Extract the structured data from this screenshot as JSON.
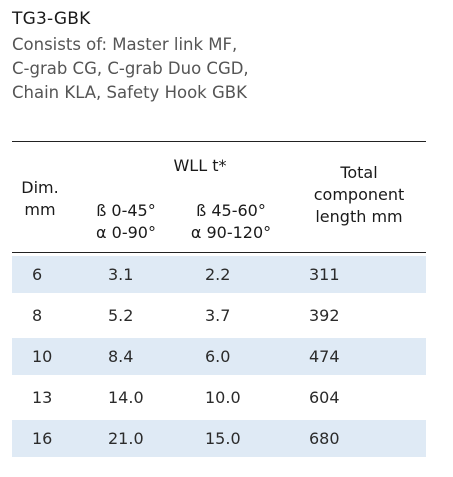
{
  "product": {
    "title": "TG3-GBK",
    "description_lines": [
      "Consists of: Master link MF,",
      "C-grab CG, C-grab Duo CGD,",
      "Chain KLA, Safety Hook GBK"
    ]
  },
  "table": {
    "header": {
      "dim": [
        "Dim.",
        "mm"
      ],
      "wll_group": "WLL t*",
      "wll_col1": [
        "ß 0-45°",
        "α 0-90°"
      ],
      "wll_col2": [
        "ß 45-60°",
        "α 90-120°"
      ],
      "length": [
        "Total",
        "component",
        "length mm"
      ]
    },
    "rows": [
      {
        "dim": "6",
        "wll1": "3.1",
        "wll2": "2.2",
        "length": "311"
      },
      {
        "dim": "8",
        "wll1": "5.2",
        "wll2": "3.7",
        "length": "392"
      },
      {
        "dim": "10",
        "wll1": "8.4",
        "wll2": "6.0",
        "length": "474"
      },
      {
        "dim": "13",
        "wll1": "14.0",
        "wll2": "10.0",
        "length": "604"
      },
      {
        "dim": "16",
        "wll1": "21.0",
        "wll2": "15.0",
        "length": "680"
      }
    ],
    "shade_color": "#dfeaf5"
  }
}
